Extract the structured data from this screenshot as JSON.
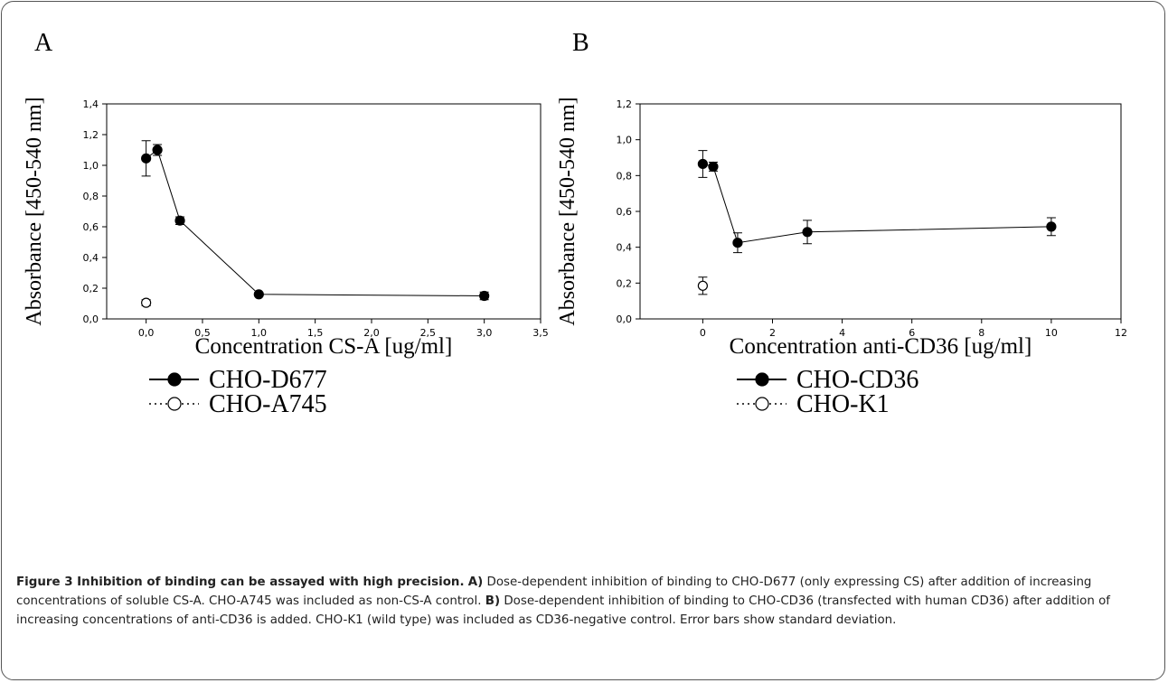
{
  "chart_data": [
    {
      "type": "scatter",
      "panel_label": "A",
      "xlabel": "Concentration CS-A [ug/ml]",
      "ylabel": "Absorbance [450-540 nm]",
      "xlim": [
        -0.35,
        3.5
      ],
      "ylim": [
        0,
        1.4
      ],
      "xticks": [
        {
          "value": 0,
          "label": "0,0"
        },
        {
          "value": 0.5,
          "label": "0,5"
        },
        {
          "value": 1,
          "label": "1,0"
        },
        {
          "value": 1.5,
          "label": "1,5"
        },
        {
          "value": 2,
          "label": "2,0"
        },
        {
          "value": 2.5,
          "label": "2,5"
        },
        {
          "value": 3,
          "label": "3,0"
        },
        {
          "value": 3.5,
          "label": "3,5"
        }
      ],
      "yticks": [
        {
          "value": 0,
          "label": "0,0"
        },
        {
          "value": 0.2,
          "label": "0,2"
        },
        {
          "value": 0.4,
          "label": "0,4"
        },
        {
          "value": 0.6,
          "label": "0,6"
        },
        {
          "value": 0.8,
          "label": "0,8"
        },
        {
          "value": 1,
          "label": "1,0"
        },
        {
          "value": 1.2,
          "label": "1,2"
        },
        {
          "value": 1.4,
          "label": "1,4"
        }
      ],
      "series": [
        {
          "name": "CHO-D677",
          "color": "#000000",
          "marker": "filled",
          "line": "solid",
          "x": [
            0,
            0.1,
            0.3,
            1,
            3
          ],
          "values": [
            1.045,
            1.1,
            0.64,
            0.16,
            0.15
          ],
          "errors": [
            0.115,
            0.035,
            0.025,
            0.01,
            0.025
          ]
        },
        {
          "name": "CHO-A745",
          "color": "#000000",
          "marker": "open",
          "line": "dotted",
          "x": [
            0
          ],
          "values": [
            0.105
          ],
          "errors": [
            0.02
          ]
        }
      ]
    },
    {
      "type": "scatter",
      "panel_label": "B",
      "xlabel": "Concentration anti-CD36 [ug/ml]",
      "ylabel": "Absorbance [450-540 nm]",
      "xlim": [
        -1.8,
        12
      ],
      "ylim": [
        0,
        1.2
      ],
      "xticks": [
        0,
        2,
        4,
        6,
        8,
        10,
        12
      ],
      "yticks": [
        {
          "value": 0,
          "label": "0,0"
        },
        {
          "value": 0.2,
          "label": "0,2"
        },
        {
          "value": 0.4,
          "label": "0,4"
        },
        {
          "value": 0.6,
          "label": "0,6"
        },
        {
          "value": 0.8,
          "label": "0,8"
        },
        {
          "value": 1,
          "label": "1,0"
        },
        {
          "value": 1.2,
          "label": "1,2"
        }
      ],
      "series": [
        {
          "name": "CHO-CD36",
          "color": "#000000",
          "marker": "filled",
          "line": "solid",
          "x": [
            0,
            0.3,
            1,
            3,
            10
          ],
          "values": [
            0.865,
            0.85,
            0.425,
            0.485,
            0.515
          ],
          "errors": [
            0.075,
            0.025,
            0.055,
            0.065,
            0.05
          ]
        },
        {
          "name": "CHO-K1",
          "color": "#000000",
          "marker": "open",
          "line": "dotted",
          "x": [
            0
          ],
          "values": [
            0.185
          ],
          "errors": [
            0.048
          ]
        }
      ]
    }
  ],
  "caption": [
    {
      "text": "Figure 3 Inhibition of binding can be assayed with high precision.",
      "bold": true
    },
    {
      "text": "A)",
      "bold": true
    },
    {
      "text": "Dose-dependent inhibition of binding to CHO-D677 (only expressing CS) after addition of increasing concentrations of soluble CS-A. CHO-A745 was included as non-CS-A control.",
      "bold": false
    },
    {
      "text": "B)",
      "bold": true
    },
    {
      "text": "Dose-dependent inhibition of binding to CHO-CD36 (transfected with human CD36) after addition of increasing concentrations of anti-CD36 is added. CHO-K1 (wild type) was included as CD36-negative control. Error bars show standard deviation.",
      "bold": false
    }
  ]
}
